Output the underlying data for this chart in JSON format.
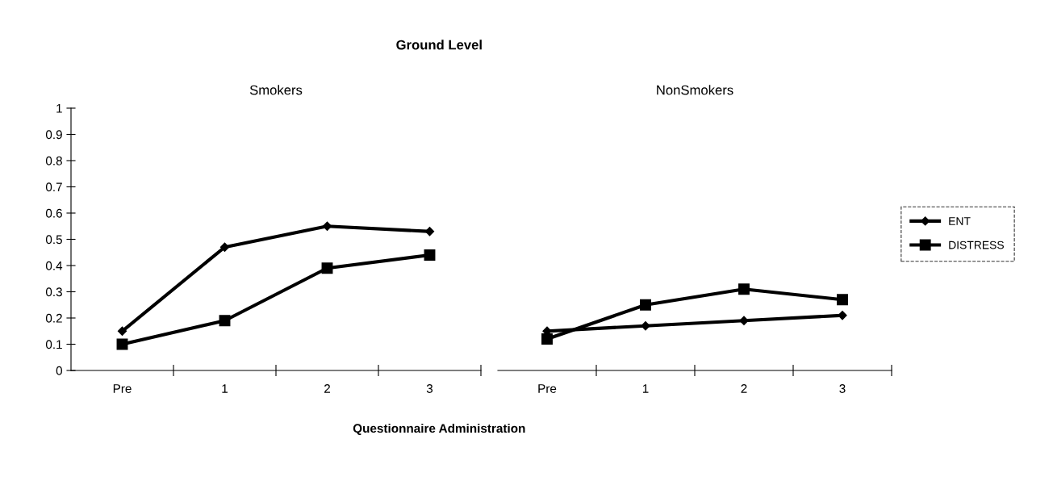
{
  "chart_data": [
    {
      "type": "line",
      "title": "Smokers",
      "xlabel": "Questionnaire Administration",
      "annotations": [
        "Ground Level"
      ],
      "categories": [
        "Pre",
        "1",
        "2",
        "3"
      ],
      "series": [
        {
          "color": "#000000",
          "marker": "diamond",
          "values": [
            0.15,
            0.47,
            0.55,
            0.53
          ]
        },
        {
          "color": "#000000",
          "marker": "square",
          "values": [
            0.1,
            0.19,
            0.39,
            0.44
          ]
        }
      ],
      "ylim": [
        0,
        1
      ],
      "yticks": [
        0,
        0.1,
        0.2,
        0.3,
        0.4,
        0.5,
        0.6,
        0.7,
        0.8,
        0.9,
        1
      ],
      "grid": false
    },
    {
      "type": "line",
      "title": "NonSmokers",
      "categories": [
        "Pre",
        "1",
        "2",
        "3"
      ],
      "series": [
        {
          "name": "ENT",
          "color": "#000000",
          "marker": "diamond",
          "values": [
            0.15,
            0.17,
            0.19,
            0.21
          ]
        },
        {
          "name": "DISTRESS",
          "color": "#000000",
          "marker": "square",
          "values": [
            0.12,
            0.25,
            0.31,
            0.27
          ]
        }
      ],
      "ylim": [
        0,
        1
      ],
      "tick_labels": "x",
      "grid": false,
      "legend": "right"
    }
  ]
}
